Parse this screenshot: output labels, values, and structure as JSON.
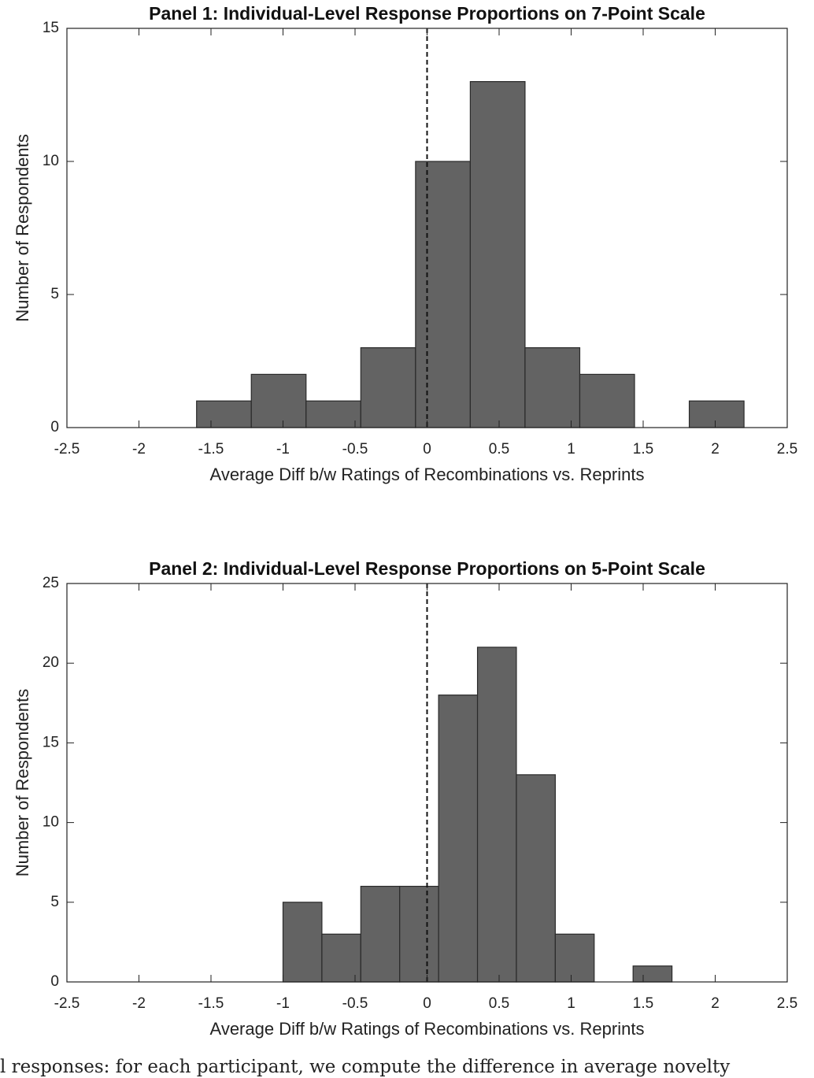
{
  "chart_data": [
    {
      "type": "histogram",
      "title": "Panel 1: Individual-Level Response Proportions on 7-Point Scale",
      "xlabel": "Average Diff b/w Ratings of Recombinations vs. Reprints",
      "ylabel": "Number of Respondents",
      "bins": [
        -1.6,
        -1.22,
        -0.84,
        -0.46,
        -0.08,
        0.3,
        0.68,
        1.06,
        1.44,
        1.82,
        2.2
      ],
      "values": [
        1,
        2,
        1,
        3,
        10,
        13,
        3,
        2,
        0,
        1
      ],
      "color": "#636363",
      "vline": 0,
      "xlim": [
        -2.5,
        2.5
      ],
      "xticks": [
        -2.5,
        -2,
        -1.5,
        -1,
        -0.5,
        0,
        0.5,
        1,
        1.5,
        2,
        2.5
      ],
      "ylim": [
        0,
        15
      ],
      "yticks": [
        0,
        5,
        10,
        15
      ]
    },
    {
      "type": "histogram",
      "title": "Panel 2: Individual-Level Response Proportions on 5-Point Scale",
      "xlabel": "Average Diff b/w Ratings of Recombinations vs. Reprints",
      "ylabel": "Number of Respondents",
      "bins": [
        -1,
        -0.73,
        -0.46,
        -0.19,
        0.08,
        0.35,
        0.62,
        0.89,
        1.16,
        1.43,
        1.7
      ],
      "values": [
        5,
        3,
        6,
        6,
        18,
        21,
        13,
        3,
        0,
        1
      ],
      "color": "#636363",
      "vline": 0,
      "xlim": [
        -2.5,
        2.5
      ],
      "xticks": [
        -2.5,
        -2,
        -1.5,
        -1,
        -0.5,
        0,
        0.5,
        1,
        1.5,
        2,
        2.5
      ],
      "ylim": [
        0,
        25
      ],
      "yticks": [
        0,
        5,
        10,
        15,
        20,
        25
      ]
    }
  ],
  "caption": "l responses: for each participant, we compute the difference in average novelty"
}
